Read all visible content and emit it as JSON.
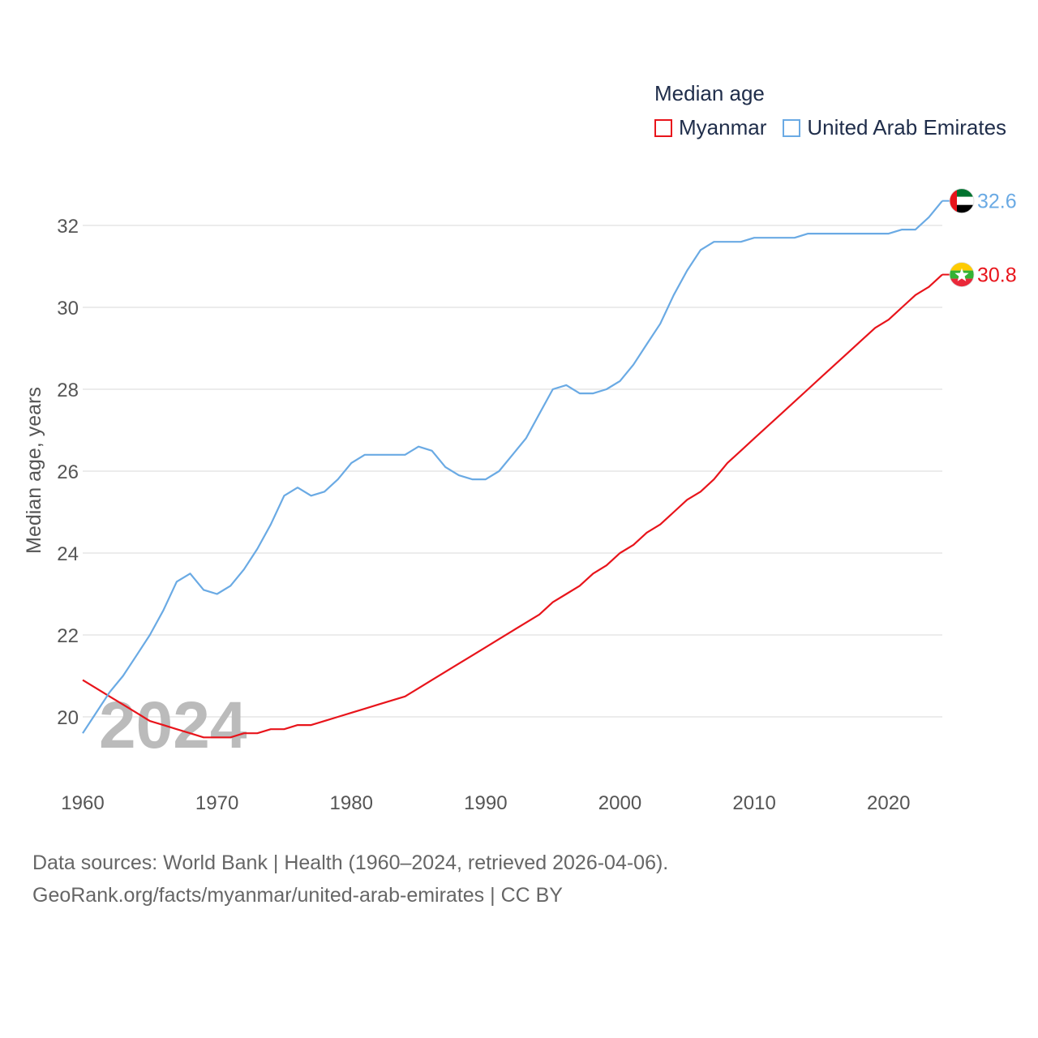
{
  "legend": {
    "title": "Median age",
    "items": [
      {
        "label": "Myanmar",
        "color": "#e8141b"
      },
      {
        "label": "United Arab Emirates",
        "color": "#6aaae4"
      }
    ]
  },
  "footer": {
    "line1": "Data sources: World Bank | Health (1960–2024, retrieved 2026-04-06).",
    "line2": "GeoRank.org/facts/myanmar/united-arab-emirates | CC BY"
  },
  "chart_data": {
    "type": "line",
    "title": "Median age",
    "xlabel": "",
    "ylabel": "Median age, years",
    "year_watermark": "2024",
    "xlim": [
      1960,
      2024
    ],
    "ylim": [
      19,
      33
    ],
    "x_ticks": [
      1960,
      1970,
      1980,
      1990,
      2000,
      2010,
      2020
    ],
    "y_ticks": [
      20,
      22,
      24,
      26,
      28,
      30,
      32
    ],
    "grid": true,
    "x": [
      1960,
      1961,
      1962,
      1963,
      1964,
      1965,
      1966,
      1967,
      1968,
      1969,
      1970,
      1971,
      1972,
      1973,
      1974,
      1975,
      1976,
      1977,
      1978,
      1979,
      1980,
      1981,
      1982,
      1983,
      1984,
      1985,
      1986,
      1987,
      1988,
      1989,
      1990,
      1991,
      1992,
      1993,
      1994,
      1995,
      1996,
      1997,
      1998,
      1999,
      2000,
      2001,
      2002,
      2003,
      2004,
      2005,
      2006,
      2007,
      2008,
      2009,
      2010,
      2011,
      2012,
      2013,
      2014,
      2015,
      2016,
      2017,
      2018,
      2019,
      2020,
      2021,
      2022,
      2023,
      2024
    ],
    "series": [
      {
        "name": "Myanmar",
        "color": "#e8141b",
        "end_label": "30.8",
        "flag": "myanmar-flag",
        "values": [
          20.9,
          20.7,
          20.5,
          20.3,
          20.1,
          19.9,
          19.8,
          19.7,
          19.6,
          19.5,
          19.5,
          19.5,
          19.6,
          19.6,
          19.7,
          19.7,
          19.8,
          19.8,
          19.9,
          20.0,
          20.1,
          20.2,
          20.3,
          20.4,
          20.5,
          20.7,
          20.9,
          21.1,
          21.3,
          21.5,
          21.7,
          21.9,
          22.1,
          22.3,
          22.5,
          22.8,
          23.0,
          23.2,
          23.5,
          23.7,
          24.0,
          24.2,
          24.5,
          24.7,
          25.0,
          25.3,
          25.5,
          25.8,
          26.2,
          26.5,
          26.8,
          27.1,
          27.4,
          27.7,
          28.0,
          28.3,
          28.6,
          28.9,
          29.2,
          29.5,
          29.7,
          30.0,
          30.3,
          30.5,
          30.8
        ]
      },
      {
        "name": "United Arab Emirates",
        "color": "#6aaae4",
        "end_label": "32.6",
        "flag": "uae-flag",
        "values": [
          19.6,
          20.1,
          20.6,
          21.0,
          21.5,
          22.0,
          22.6,
          23.3,
          23.5,
          23.1,
          23.0,
          23.2,
          23.6,
          24.1,
          24.7,
          25.4,
          25.6,
          25.4,
          25.5,
          25.8,
          26.2,
          26.4,
          26.4,
          26.4,
          26.4,
          26.6,
          26.5,
          26.1,
          25.9,
          25.8,
          25.8,
          26.0,
          26.4,
          26.8,
          27.4,
          28.0,
          28.1,
          27.9,
          27.9,
          28.0,
          28.2,
          28.6,
          29.1,
          29.6,
          30.3,
          30.9,
          31.4,
          31.6,
          31.6,
          31.6,
          31.7,
          31.7,
          31.7,
          31.7,
          31.8,
          31.8,
          31.8,
          31.8,
          31.8,
          31.8,
          31.8,
          31.9,
          31.9,
          32.2,
          32.6
        ]
      }
    ]
  }
}
